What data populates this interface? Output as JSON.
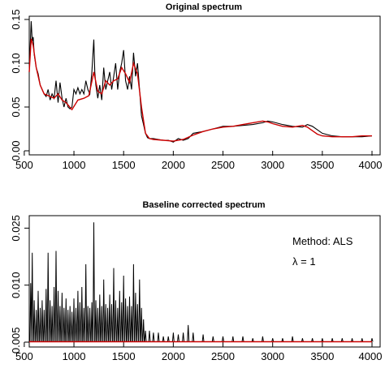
{
  "chart_data": [
    {
      "type": "line",
      "title": "Original spectrum",
      "xlim": [
        550,
        4000
      ],
      "ylim": [
        0.0,
        0.15
      ],
      "x_ticks": [
        "500",
        "1000",
        "1500",
        "2000",
        "2500",
        "3000",
        "3500",
        "4000"
      ],
      "y_ticks": [
        "0.00",
        "0.05",
        "0.10",
        "0.15"
      ],
      "grid": false,
      "series": [
        {
          "color": "#000000",
          "x": [
            550,
            560,
            570,
            580,
            590,
            600,
            620,
            640,
            660,
            680,
            700,
            720,
            740,
            760,
            780,
            800,
            820,
            840,
            860,
            880,
            900,
            920,
            940,
            960,
            980,
            1000,
            1020,
            1040,
            1060,
            1080,
            1100,
            1120,
            1140,
            1160,
            1180,
            1200,
            1210,
            1220,
            1240,
            1260,
            1280,
            1300,
            1320,
            1340,
            1360,
            1380,
            1400,
            1420,
            1440,
            1460,
            1480,
            1500,
            1520,
            1540,
            1560,
            1580,
            1600,
            1620,
            1640,
            1660,
            1680,
            1700,
            1720,
            1740,
            1760,
            1800,
            1850,
            1900,
            1950,
            2000,
            2050,
            2100,
            2150,
            2200,
            2300,
            2400,
            2500,
            2600,
            2700,
            2800,
            2900,
            2950,
            3000,
            3100,
            3200,
            3300,
            3350,
            3400,
            3450,
            3500,
            3600,
            3700,
            3800,
            3900,
            4000
          ],
          "y": [
            0.09,
            0.12,
            0.148,
            0.125,
            0.13,
            0.11,
            0.095,
            0.088,
            0.075,
            0.07,
            0.065,
            0.062,
            0.07,
            0.058,
            0.065,
            0.06,
            0.08,
            0.055,
            0.078,
            0.06,
            0.05,
            0.06,
            0.05,
            0.048,
            0.05,
            0.07,
            0.065,
            0.072,
            0.065,
            0.07,
            0.065,
            0.08,
            0.07,
            0.065,
            0.09,
            0.127,
            0.09,
            0.075,
            0.06,
            0.075,
            0.058,
            0.095,
            0.07,
            0.08,
            0.09,
            0.07,
            0.085,
            0.1,
            0.07,
            0.09,
            0.1,
            0.115,
            0.08,
            0.07,
            0.085,
            0.07,
            0.112,
            0.085,
            0.1,
            0.07,
            0.04,
            0.03,
            0.02,
            0.015,
            0.014,
            0.014,
            0.013,
            0.012,
            0.012,
            0.01,
            0.014,
            0.012,
            0.014,
            0.02,
            0.022,
            0.025,
            0.028,
            0.028,
            0.029,
            0.03,
            0.032,
            0.034,
            0.033,
            0.03,
            0.028,
            0.027,
            0.03,
            0.028,
            0.024,
            0.02,
            0.017,
            0.016,
            0.016,
            0.016,
            0.017
          ]
        },
        {
          "color": "#cc0000",
          "x": [
            550,
            570,
            590,
            620,
            660,
            700,
            760,
            800,
            840,
            880,
            920,
            980,
            1040,
            1100,
            1150,
            1200,
            1240,
            1280,
            1320,
            1360,
            1400,
            1440,
            1480,
            1520,
            1560,
            1600,
            1640,
            1680,
            1720,
            1760,
            1800,
            1900,
            2000,
            2100,
            2200,
            2300,
            2400,
            2500,
            2600,
            2700,
            2800,
            2900,
            2950,
            3000,
            3100,
            3200,
            3300,
            3350,
            3400,
            3450,
            3500,
            3600,
            3700,
            3800,
            3900,
            4000
          ],
          "y": [
            0.09,
            0.128,
            0.12,
            0.095,
            0.075,
            0.065,
            0.062,
            0.06,
            0.065,
            0.058,
            0.055,
            0.047,
            0.058,
            0.06,
            0.063,
            0.09,
            0.068,
            0.065,
            0.08,
            0.075,
            0.08,
            0.082,
            0.095,
            0.088,
            0.078,
            0.1,
            0.088,
            0.05,
            0.02,
            0.014,
            0.013,
            0.012,
            0.011,
            0.013,
            0.018,
            0.022,
            0.025,
            0.027,
            0.028,
            0.03,
            0.032,
            0.034,
            0.033,
            0.031,
            0.028,
            0.027,
            0.029,
            0.027,
            0.023,
            0.019,
            0.017,
            0.016,
            0.016,
            0.016,
            0.017,
            0.017
          ]
        }
      ]
    },
    {
      "type": "line",
      "title": "Baseline corrected spectrum",
      "xlim": [
        550,
        4000
      ],
      "ylim": [
        -0.005,
        0.027
      ],
      "x_ticks": [
        "500",
        "1000",
        "1500",
        "2000",
        "2500",
        "3000",
        "3500",
        "4000"
      ],
      "y_ticks": [
        "-0.005",
        "0.010",
        "0.025"
      ],
      "grid": false,
      "annotations": {
        "method": "Method: ALS",
        "lambda": "λ = 1"
      },
      "peaks": [
        [
          565,
          0.0105
        ],
        [
          580,
          0.0185
        ],
        [
          600,
          0.006
        ],
        [
          620,
          0.0035
        ],
        [
          640,
          0.0085
        ],
        [
          660,
          0.004
        ],
        [
          680,
          0.006
        ],
        [
          700,
          0.0035
        ],
        [
          720,
          0.009
        ],
        [
          740,
          0.0185
        ],
        [
          760,
          0.006
        ],
        [
          780,
          0.0045
        ],
        [
          800,
          0.0095
        ],
        [
          820,
          0.019
        ],
        [
          840,
          0.0085
        ],
        [
          860,
          0.0045
        ],
        [
          880,
          0.008
        ],
        [
          900,
          0.004
        ],
        [
          920,
          0.0065
        ],
        [
          940,
          0.0035
        ],
        [
          960,
          0.0045
        ],
        [
          980,
          0.003
        ],
        [
          1000,
          0.0065
        ],
        [
          1020,
          0.004
        ],
        [
          1040,
          0.0085
        ],
        [
          1060,
          0.0055
        ],
        [
          1080,
          0.0095
        ],
        [
          1100,
          0.004
        ],
        [
          1120,
          0.0155
        ],
        [
          1140,
          0.0045
        ],
        [
          1160,
          0.004
        ],
        [
          1180,
          0.0055
        ],
        [
          1200,
          0.0265
        ],
        [
          1220,
          0.006
        ],
        [
          1240,
          0.004
        ],
        [
          1260,
          0.0075
        ],
        [
          1280,
          0.0045
        ],
        [
          1300,
          0.0115
        ],
        [
          1320,
          0.005
        ],
        [
          1340,
          0.004
        ],
        [
          1360,
          0.0075
        ],
        [
          1380,
          0.005
        ],
        [
          1400,
          0.0145
        ],
        [
          1420,
          0.006
        ],
        [
          1440,
          0.004
        ],
        [
          1460,
          0.0085
        ],
        [
          1480,
          0.0055
        ],
        [
          1500,
          0.0125
        ],
        [
          1520,
          0.0065
        ],
        [
          1540,
          0.0045
        ],
        [
          1560,
          0.007
        ],
        [
          1580,
          0.0045
        ],
        [
          1600,
          0.0155
        ],
        [
          1620,
          0.008
        ],
        [
          1640,
          0.005
        ],
        [
          1660,
          0.0115
        ],
        [
          1680,
          0.004
        ],
        [
          1700,
          0.001
        ],
        [
          1720,
          -0.002
        ],
        [
          1760,
          -0.002
        ],
        [
          1800,
          -0.0025
        ],
        [
          1850,
          -0.0025
        ],
        [
          1900,
          -0.0035
        ],
        [
          1950,
          -0.0035
        ],
        [
          2000,
          -0.0025
        ],
        [
          2050,
          -0.003
        ],
        [
          2100,
          -0.0025
        ],
        [
          2150,
          -0.0005
        ],
        [
          2200,
          -0.0025
        ],
        [
          2300,
          -0.003
        ],
        [
          2400,
          -0.0035
        ],
        [
          2500,
          -0.0035
        ],
        [
          2600,
          -0.0035
        ],
        [
          2700,
          -0.0035
        ],
        [
          2800,
          -0.004
        ],
        [
          2900,
          -0.0035
        ],
        [
          3000,
          -0.004
        ],
        [
          3100,
          -0.004
        ],
        [
          3200,
          -0.0035
        ],
        [
          3300,
          -0.004
        ],
        [
          3400,
          -0.004
        ],
        [
          3500,
          -0.004
        ],
        [
          3600,
          -0.004
        ],
        [
          3700,
          -0.004
        ],
        [
          3800,
          -0.004
        ],
        [
          3900,
          -0.004
        ],
        [
          4000,
          -0.004
        ]
      ],
      "series": [
        {
          "color": "#000000",
          "baseline": -0.0049
        },
        {
          "color": "#cc0000",
          "x": [
            550,
            4000
          ],
          "y": [
            -0.0049,
            -0.0049
          ]
        }
      ]
    }
  ]
}
